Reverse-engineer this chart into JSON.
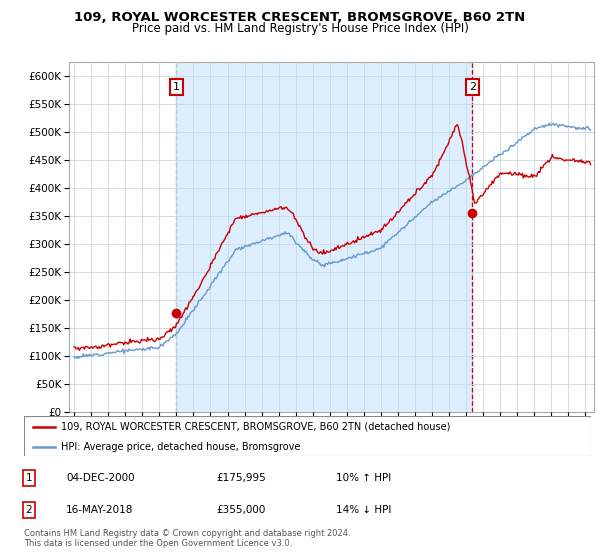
{
  "title1": "109, ROYAL WORCESTER CRESCENT, BROMSGROVE, B60 2TN",
  "title2": "Price paid vs. HM Land Registry's House Price Index (HPI)",
  "legend_line1": "109, ROYAL WORCESTER CRESCENT, BROMSGROVE, B60 2TN (detached house)",
  "legend_line2": "HPI: Average price, detached house, Bromsgrove",
  "annotation1_label": "1",
  "annotation1_date": "04-DEC-2000",
  "annotation1_price": "£175,995",
  "annotation1_hpi": "10% ↑ HPI",
  "annotation2_label": "2",
  "annotation2_date": "16-MAY-2018",
  "annotation2_price": "£355,000",
  "annotation2_hpi": "14% ↓ HPI",
  "footnote1": "Contains HM Land Registry data © Crown copyright and database right 2024.",
  "footnote2": "This data is licensed under the Open Government Licence v3.0.",
  "sale_color": "#cc0000",
  "hpi_color": "#6699cc",
  "shade_color": "#ddeeff",
  "ylim": [
    0,
    625000
  ],
  "yticks": [
    0,
    50000,
    100000,
    150000,
    200000,
    250000,
    300000,
    350000,
    400000,
    450000,
    500000,
    550000,
    600000
  ],
  "sale1_x": 2001.0,
  "sale1_y": 175995,
  "sale2_x": 2018.37,
  "sale2_y": 355000,
  "vline1_x": 2001.0,
  "vline2_x": 2018.37,
  "xlim_start": 1994.7,
  "xlim_end": 2025.5
}
